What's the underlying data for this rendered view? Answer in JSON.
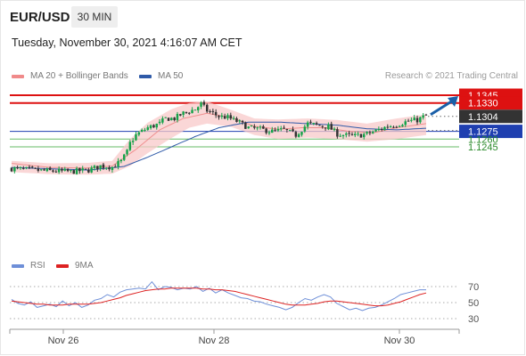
{
  "header": {
    "symbol": "EUR/USD",
    "timeframe": "30 MIN",
    "datetime": "Tuesday, November 30, 2021 4:16:07 AM CET",
    "credit": "Research © 2021 Trading Central"
  },
  "legend": {
    "ma20": "MA 20 + Bollinger Bands",
    "ma50": "MA 50",
    "rsi": "RSI",
    "ma9": "9MA"
  },
  "colors": {
    "up": "#16a34a",
    "down": "#333333",
    "resistance": "#dd1111",
    "support": "#1f3fb0",
    "target": "#66bb66",
    "band": "#f8caca",
    "ma20": "#ef8f8f",
    "ma50": "#2f5aa8",
    "rsi": "#6e8fd8",
    "ma9": "#dd2222",
    "arrow": "#1a5fa8",
    "current": "#333333"
  },
  "chart_data": [
    {
      "type": "candlestick",
      "title": "EUR/USD 30 MIN",
      "x_ticks": [
        "Nov 26",
        "Nov 28",
        "Nov 30"
      ],
      "price_levels": [
        {
          "label": "1.1345",
          "value": 1.1345,
          "kind": "resistance"
        },
        {
          "label": "1.1330",
          "value": 1.133,
          "kind": "resistance"
        },
        {
          "label": "1.1304",
          "value": 1.1304,
          "kind": "current"
        },
        {
          "label": "1.1275",
          "value": 1.1275,
          "kind": "pivot"
        },
        {
          "label": "1.1260",
          "value": 1.126,
          "kind": "target"
        },
        {
          "label": "1.1245",
          "value": 1.1245,
          "kind": "target"
        }
      ],
      "close_path": [
        [
          0,
          1.1203
        ],
        [
          10,
          1.1199
        ],
        [
          20,
          1.1197
        ],
        [
          26,
          1.12
        ],
        [
          30,
          1.1208
        ],
        [
          34,
          1.1206
        ],
        [
          37,
          1.1217
        ],
        [
          39,
          1.1235
        ],
        [
          40,
          1.1252
        ],
        [
          42,
          1.1268
        ],
        [
          46,
          1.1282
        ],
        [
          50,
          1.129
        ],
        [
          52,
          1.13
        ],
        [
          55,
          1.13
        ],
        [
          58,
          1.131
        ],
        [
          62,
          1.1318
        ],
        [
          64,
          1.1328
        ],
        [
          66,
          1.1315
        ],
        [
          68,
          1.131
        ],
        [
          70,
          1.1304
        ],
        [
          73,
          1.1302
        ],
        [
          77,
          1.1292
        ],
        [
          80,
          1.1282
        ],
        [
          84,
          1.1279
        ],
        [
          88,
          1.1275
        ],
        [
          92,
          1.1278
        ],
        [
          96,
          1.1268
        ],
        [
          100,
          1.129
        ],
        [
          104,
          1.1286
        ],
        [
          107,
          1.1284
        ],
        [
          110,
          1.127
        ],
        [
          113,
          1.1267
        ],
        [
          116,
          1.1266
        ],
        [
          120,
          1.127
        ],
        [
          124,
          1.1278
        ],
        [
          127,
          1.1285
        ],
        [
          130,
          1.1288
        ],
        [
          134,
          1.1295
        ],
        [
          137,
          1.1297
        ],
        [
          140,
          1.1306
        ]
      ],
      "ma20": [
        [
          0,
          1.1213
        ],
        [
          13,
          1.1205
        ],
        [
          26,
          1.1204
        ],
        [
          34,
          1.1208
        ],
        [
          42,
          1.124
        ],
        [
          50,
          1.1278
        ],
        [
          58,
          1.13
        ],
        [
          66,
          1.131
        ],
        [
          74,
          1.1302
        ],
        [
          82,
          1.1285
        ],
        [
          90,
          1.1279
        ],
        [
          98,
          1.1282
        ],
        [
          106,
          1.1282
        ],
        [
          114,
          1.1275
        ],
        [
          122,
          1.1272
        ],
        [
          130,
          1.1282
        ],
        [
          140,
          1.129
        ]
      ],
      "ma50": [
        [
          0,
          1.1205
        ],
        [
          26,
          1.12
        ],
        [
          38,
          1.1207
        ],
        [
          46,
          1.1225
        ],
        [
          54,
          1.1245
        ],
        [
          62,
          1.1265
        ],
        [
          70,
          1.1282
        ],
        [
          80,
          1.1293
        ],
        [
          90,
          1.1293
        ],
        [
          100,
          1.129
        ],
        [
          110,
          1.1287
        ],
        [
          120,
          1.128
        ],
        [
          130,
          1.1278
        ],
        [
          140,
          1.1281
        ]
      ],
      "bollinger_upper": [
        [
          0,
          1.1218
        ],
        [
          13,
          1.1213
        ],
        [
          26,
          1.1214
        ],
        [
          34,
          1.1218
        ],
        [
          40,
          1.126
        ],
        [
          46,
          1.1292
        ],
        [
          54,
          1.1318
        ],
        [
          60,
          1.133
        ],
        [
          66,
          1.1333
        ],
        [
          74,
          1.1317
        ],
        [
          82,
          1.13
        ],
        [
          90,
          1.1298
        ],
        [
          100,
          1.13
        ],
        [
          110,
          1.1297
        ],
        [
          120,
          1.129
        ],
        [
          130,
          1.13
        ],
        [
          140,
          1.1308
        ]
      ],
      "bollinger_lower": [
        [
          0,
          1.1196
        ],
        [
          13,
          1.1192
        ],
        [
          26,
          1.1191
        ],
        [
          34,
          1.1193
        ],
        [
          40,
          1.1208
        ],
        [
          46,
          1.1233
        ],
        [
          54,
          1.1262
        ],
        [
          60,
          1.1282
        ],
        [
          66,
          1.129
        ],
        [
          74,
          1.1284
        ],
        [
          82,
          1.1268
        ],
        [
          90,
          1.126
        ],
        [
          100,
          1.1263
        ],
        [
          110,
          1.126
        ],
        [
          120,
          1.1255
        ],
        [
          130,
          1.126
        ],
        [
          140,
          1.1268
        ]
      ],
      "forecast": {
        "from": 1.1304,
        "to": 1.1345
      }
    },
    {
      "type": "line",
      "title": "RSI",
      "y_ticks": [
        70,
        50,
        30
      ],
      "series": [
        {
          "name": "RSI",
          "values": [
            54,
            49,
            47,
            51,
            44,
            46,
            48,
            45,
            52,
            46,
            50,
            44,
            47,
            53,
            55,
            60,
            57,
            63,
            66,
            67,
            68,
            67,
            76,
            66,
            70,
            69,
            66,
            68,
            67,
            70,
            64,
            68,
            62,
            66,
            62,
            59,
            56,
            55,
            52,
            51,
            48,
            46,
            44,
            41,
            44,
            50,
            55,
            53,
            57,
            60,
            57,
            49,
            45,
            41,
            43,
            40,
            43,
            44,
            47,
            51,
            55,
            60,
            62,
            64,
            66,
            66
          ]
        },
        {
          "name": "9MA",
          "values": [
            52,
            51,
            50,
            49,
            48,
            48,
            47,
            47,
            47,
            48,
            48,
            48,
            48,
            49,
            50,
            52,
            54,
            56,
            59,
            61,
            63,
            65,
            66,
            67,
            67,
            68,
            68,
            68,
            68,
            68,
            67,
            67,
            66,
            66,
            65,
            64,
            62,
            60,
            58,
            56,
            54,
            52,
            50,
            48,
            47,
            47,
            47,
            48,
            49,
            51,
            52,
            52,
            51,
            50,
            49,
            48,
            47,
            46,
            46,
            47,
            49,
            51,
            54,
            57,
            60,
            62
          ]
        }
      ]
    }
  ]
}
